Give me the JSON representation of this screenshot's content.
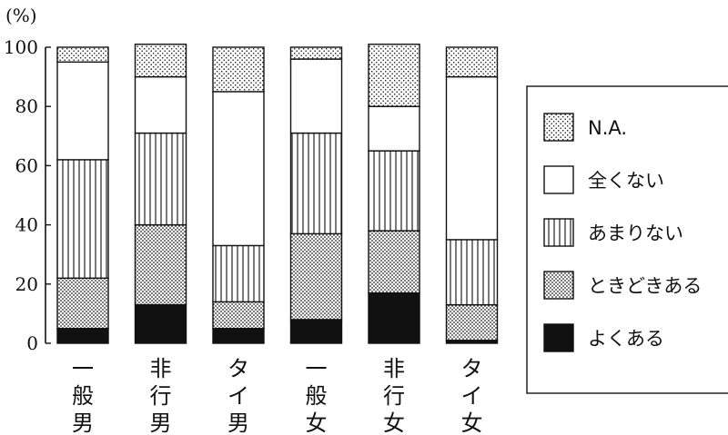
{
  "chart_data": {
    "type": "bar",
    "stacked": true,
    "unit_label": "(%)",
    "ylim": [
      0,
      100
    ],
    "yticks": [
      0,
      20,
      40,
      60,
      80,
      100
    ],
    "categories": [
      [
        "一",
        "般",
        "男"
      ],
      [
        "非",
        "行",
        "男"
      ],
      [
        "タ",
        "イ",
        "男"
      ],
      [
        "一",
        "般",
        "女"
      ],
      [
        "非",
        "行",
        "女"
      ],
      [
        "タ",
        "イ",
        "女"
      ]
    ],
    "series": [
      {
        "name": "よくある",
        "pattern": "solid",
        "values": [
          5,
          13,
          5,
          8,
          17,
          1
        ]
      },
      {
        "name": "ときどきある",
        "pattern": "dots",
        "values": [
          17,
          27,
          9,
          29,
          21,
          12
        ]
      },
      {
        "name": "あまりない",
        "pattern": "vlines",
        "values": [
          40,
          31,
          19,
          34,
          27,
          22
        ]
      },
      {
        "name": "全くない",
        "pattern": "blank",
        "values": [
          33,
          19,
          52,
          25,
          15,
          55
        ]
      },
      {
        "name": "N.A.",
        "pattern": "sparsedots",
        "values": [
          5,
          11,
          15,
          4,
          21,
          10
        ]
      }
    ],
    "legend": {
      "position": "right",
      "items": [
        "N.A.",
        "全くない",
        "あまりない",
        "ときどきある",
        "よくある"
      ]
    },
    "grid": false
  }
}
